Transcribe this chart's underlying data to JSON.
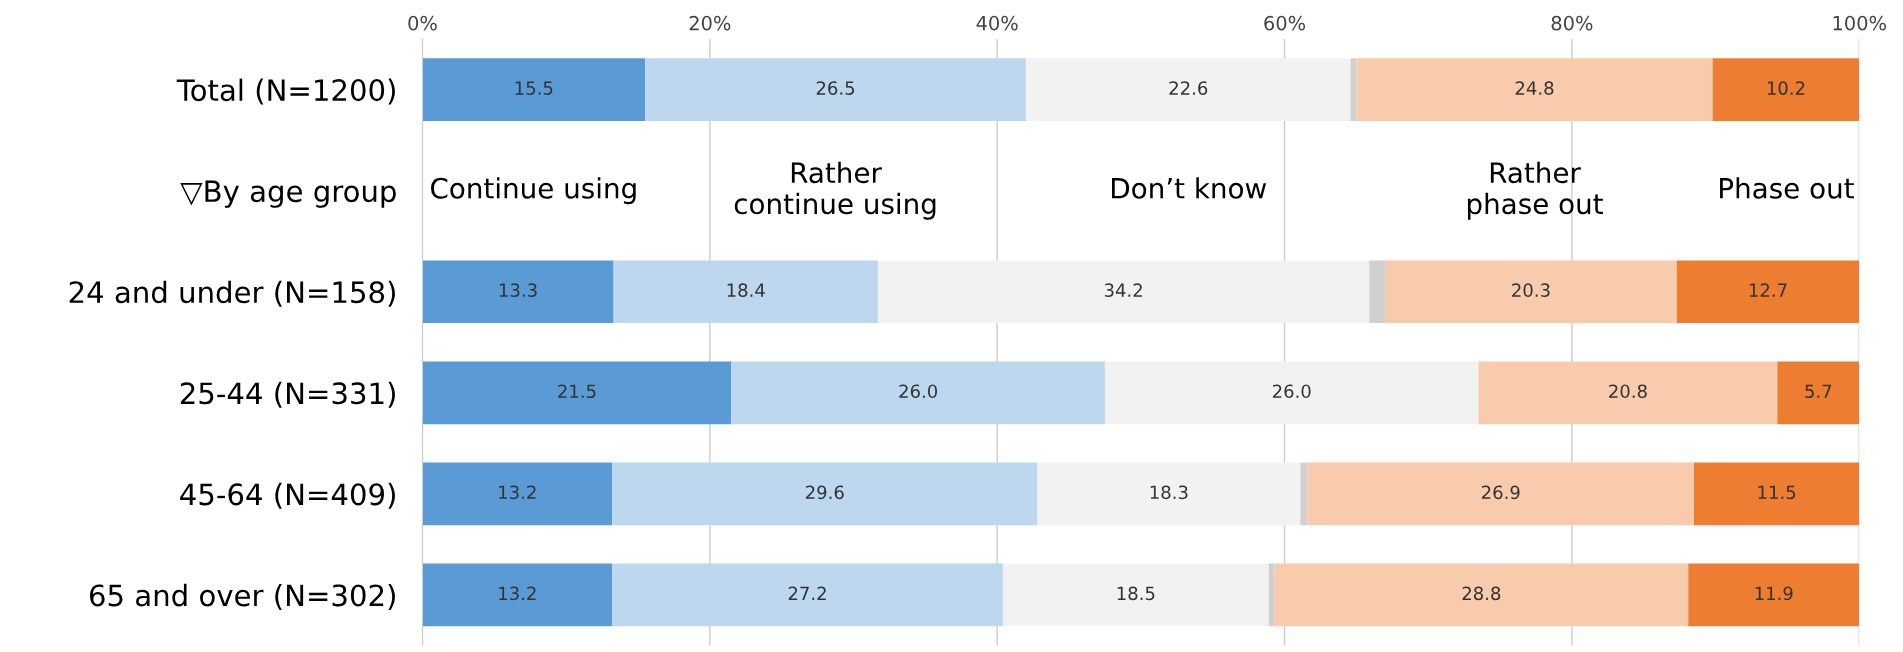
{
  "chart_data": {
    "type": "bar",
    "orientation": "horizontal",
    "stacked": true,
    "grid": "x",
    "categories": [
      "Total (N=1200)",
      "▽By age group",
      "24 and under (N=158)",
      "25-44 (N=331)",
      "45-64 (N=409)",
      "65 and over (N=302)"
    ],
    "xlim": [
      0,
      100
    ],
    "xticks": [
      {
        "value": 0,
        "label": "0%"
      },
      {
        "value": 20,
        "label": "20%"
      },
      {
        "value": 40,
        "label": "40%"
      },
      {
        "value": 60,
        "label": "60%"
      },
      {
        "value": 80,
        "label": "80%"
      },
      {
        "value": 100,
        "label": "100%"
      }
    ],
    "series": [
      {
        "name": "Continue using",
        "color": "#5b9bd5",
        "values": [
          15.5,
          null,
          13.3,
          21.5,
          13.2,
          13.2
        ],
        "value_labels": [
          "15.5",
          null,
          "13.3",
          "21.5",
          "13.2",
          "13.2"
        ]
      },
      {
        "name": "Rather\ncontinue using",
        "color": "#bdd7ee",
        "values": [
          26.5,
          null,
          18.4,
          26.0,
          29.6,
          27.2
        ],
        "value_labels": [
          "26.5",
          null,
          "18.4",
          "26.0",
          "29.6",
          "27.2"
        ]
      },
      {
        "name": "Don’t know",
        "color": "#f2f2f2",
        "values": [
          22.6,
          null,
          34.2,
          26.0,
          18.3,
          18.5
        ],
        "value_labels": [
          "22.6",
          null,
          "34.2",
          "26.0",
          "18.3",
          "18.5"
        ]
      },
      {
        "color": "#d0d0d0",
        "values": [
          0.4,
          null,
          1.1,
          0.0,
          0.5,
          0.4
        ]
      },
      {
        "name": "Rather\nphase out",
        "color": "#f8cbad",
        "values": [
          24.8,
          null,
          20.3,
          20.8,
          26.9,
          28.8
        ],
        "value_labels": [
          "24.8",
          null,
          "20.3",
          "20.8",
          "26.9",
          "28.8"
        ]
      },
      {
        "name": "Phase out",
        "color": "#ed7d31",
        "values": [
          10.2,
          null,
          12.7,
          5.7,
          11.5,
          11.9
        ],
        "value_labels": [
          "10.2",
          null,
          "12.7",
          "5.7",
          "11.5",
          "11.9"
        ]
      }
    ]
  }
}
